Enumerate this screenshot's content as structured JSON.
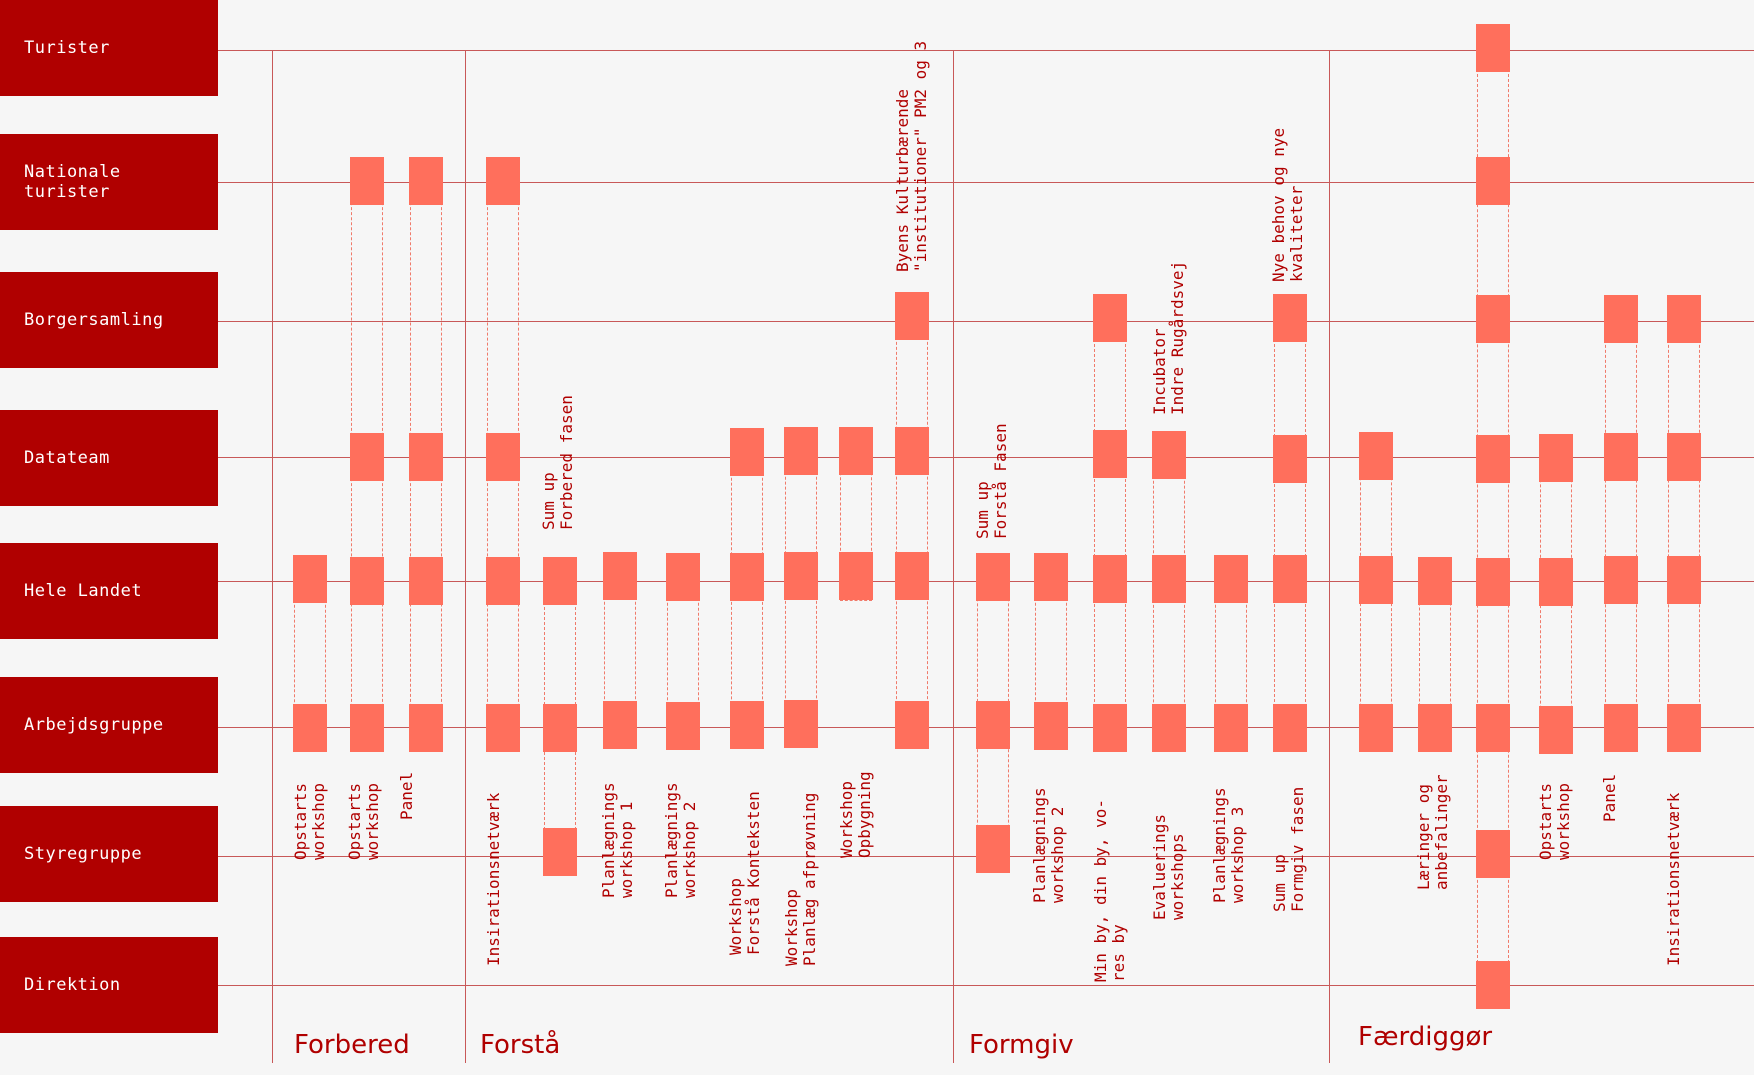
{
  "rows": [
    {
      "id": "turister",
      "label": "Turister"
    },
    {
      "id": "nationale",
      "label": "Nationale\nturister"
    },
    {
      "id": "borgersamling",
      "label": "Borgersamling"
    },
    {
      "id": "datateam",
      "label": "Datateam"
    },
    {
      "id": "hele-landet",
      "label": "Hele Landet"
    },
    {
      "id": "arbejdsgruppe",
      "label": "Arbejdsgruppe"
    },
    {
      "id": "styregruppe",
      "label": "Styregruppe"
    },
    {
      "id": "direktion",
      "label": "Direktion"
    }
  ],
  "phases": [
    {
      "id": "forbered",
      "label": "Forbered"
    },
    {
      "id": "forsta",
      "label": "Forstå"
    },
    {
      "id": "formgiv",
      "label": "Formgiv"
    },
    {
      "id": "faerdiggor",
      "label": "Færdiggør"
    }
  ],
  "activities": [
    {
      "label": "Opstarts\nworkshop",
      "phase": "forbered",
      "rows": [
        "hele-landet",
        "arbejdsgruppe"
      ]
    },
    {
      "label": "Opstarts\nworkshop",
      "phase": "forbered",
      "rows": [
        "nationale",
        "datateam",
        "hele-landet",
        "arbejdsgruppe"
      ]
    },
    {
      "label": "Panel",
      "phase": "forbered",
      "rows": [
        "nationale",
        "datateam",
        "hele-landet",
        "arbejdsgruppe"
      ]
    },
    {
      "label": "Insirationsnetværk",
      "phase": "forsta",
      "rows": [
        "nationale",
        "datateam",
        "hele-landet",
        "arbejdsgruppe"
      ]
    },
    {
      "label": "Sum up\nForbered fasen",
      "phase": "forsta",
      "rows": [
        "hele-landet",
        "arbejdsgruppe",
        "styregruppe"
      ]
    },
    {
      "label": "Planlægnings\nworkshop 1",
      "phase": "forsta",
      "rows": [
        "hele-landet",
        "arbejdsgruppe"
      ]
    },
    {
      "label": "Planlægnings\nworkshop 2",
      "phase": "forsta",
      "rows": [
        "hele-landet",
        "arbejdsgruppe"
      ]
    },
    {
      "label": "Workshop\nForstå Konteksten",
      "phase": "forsta",
      "rows": [
        "datateam",
        "hele-landet",
        "arbejdsgruppe"
      ]
    },
    {
      "label": "Workshop\nPlanlæg afprøvning",
      "phase": "forsta",
      "rows": [
        "datateam",
        "hele-landet",
        "arbejdsgruppe"
      ]
    },
    {
      "label": "Workshop\nOpbygning",
      "phase": "forsta",
      "rows": [
        "datateam",
        "hele-landet"
      ]
    },
    {
      "label": "Byens Kulturbærende\n\"institutioner\" PM2 og 3",
      "phase": "forsta",
      "rows": [
        "borgersamling",
        "datateam",
        "hele-landet",
        "arbejdsgruppe"
      ]
    },
    {
      "label": "Sum up\nForstå Fasen",
      "phase": "formgiv",
      "rows": [
        "hele-landet",
        "arbejdsgruppe",
        "styregruppe"
      ]
    },
    {
      "label": "Planlægnings\nworkshop 2",
      "phase": "formgiv",
      "rows": [
        "hele-landet",
        "arbejdsgruppe"
      ]
    },
    {
      "label": "Min by, din by, vo-\nres by",
      "phase": "formgiv",
      "rows": [
        "borgersamling",
        "datateam",
        "hele-landet",
        "arbejdsgruppe"
      ]
    },
    {
      "label": "Evaluerings\nworkshops",
      "phase": "formgiv",
      "rows": [
        "datateam",
        "hele-landet",
        "arbejdsgruppe"
      ]
    },
    {
      "label": "Incubator\nIndre Rugårdsvej",
      "phase": "formgiv",
      "rows": []
    },
    {
      "label": "Planlægnings\nworkshop 3",
      "phase": "formgiv",
      "rows": [
        "hele-landet",
        "arbejdsgruppe"
      ]
    },
    {
      "label": "Sum up\nFormgiv fasen",
      "phase": "formgiv",
      "rows": [
        "borgersamling",
        "datateam",
        "hele-landet",
        "arbejdsgruppe"
      ]
    },
    {
      "label": "Nye behov og nye\nkvaliteter",
      "phase": "formgiv",
      "rows": []
    },
    {
      "label": "",
      "phase": "faerdiggor",
      "rows": [
        "datateam",
        "hele-landet",
        "arbejdsgruppe"
      ]
    },
    {
      "label": "Læringer og\nanbefalinger",
      "phase": "faerdiggor",
      "rows": [
        "hele-landet",
        "arbejdsgruppe"
      ]
    },
    {
      "label": "",
      "phase": "faerdiggor",
      "rows": [
        "turister",
        "nationale",
        "borgersamling",
        "datateam",
        "hele-landet",
        "arbejdsgruppe",
        "styregruppe",
        "direktion"
      ]
    },
    {
      "label": "Opstarts\nworkshop",
      "phase": "faerdiggor",
      "rows": [
        "datateam",
        "hele-landet",
        "arbejdsgruppe"
      ]
    },
    {
      "label": "Panel",
      "phase": "faerdiggor",
      "rows": [
        "borgersamling",
        "datateam",
        "hele-landet",
        "arbejdsgruppe"
      ]
    },
    {
      "label": "Insirationsnetværk",
      "phase": "faerdiggor",
      "rows": [
        "borgersamling",
        "datateam",
        "hele-landet",
        "arbejdsgruppe"
      ]
    }
  ],
  "colors": {
    "label_bg": "#b00000",
    "block": "#ff6f5c",
    "line": "#c85858",
    "text": "#b00000"
  }
}
